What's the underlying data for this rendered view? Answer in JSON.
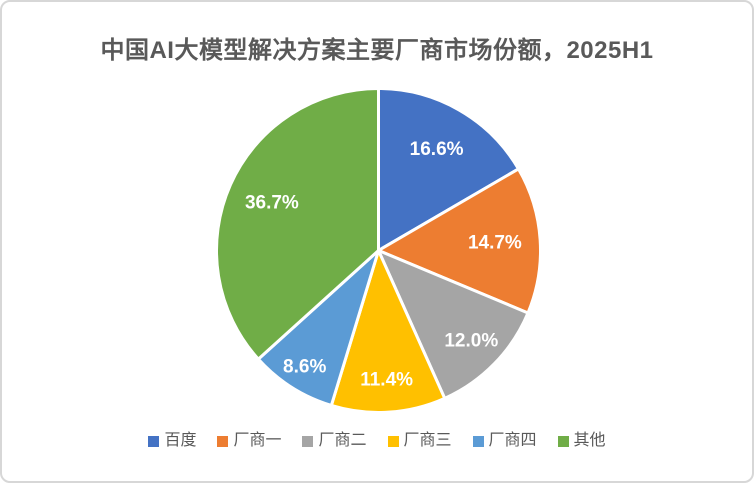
{
  "chart_data": {
    "type": "pie",
    "title": "中国AI大模型解决方案主要厂商市场份额，2025H1",
    "categories": [
      "百度",
      "厂商一",
      "厂商二",
      "厂商三",
      "厂商四",
      "其他"
    ],
    "values": [
      16.6,
      14.7,
      12.0,
      11.4,
      8.6,
      36.7
    ],
    "labels": [
      "16.6%",
      "14.7%",
      "12.0%",
      "11.4%",
      "8.6%",
      "36.7%"
    ],
    "unit": "%",
    "colors": [
      "#4472C4",
      "#ED7D31",
      "#A5A5A5",
      "#FFC000",
      "#5B9BD5",
      "#70AD47"
    ],
    "start_angle_deg": 0,
    "direction": "clockwise",
    "slice_border_color": "#FFFFFF",
    "label_color": "#FFFFFF",
    "title_color": "#595959",
    "legend_text_color": "#595959",
    "legend_position": "bottom",
    "grid": false
  }
}
